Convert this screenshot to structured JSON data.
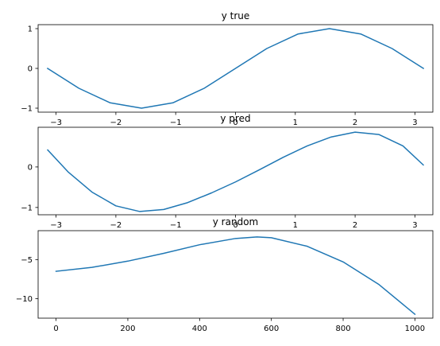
{
  "chart_data": [
    {
      "type": "line",
      "title": "y true",
      "xlabel": "",
      "ylabel": "",
      "xlim": [
        -3.3,
        3.3
      ],
      "ylim": [
        -1.1,
        1.1
      ],
      "xticks": [
        -3,
        -2,
        -1,
        0,
        1,
        2,
        3
      ],
      "xtick_labels": [
        "−3",
        "−2",
        "−1",
        "0",
        "1",
        "2",
        "3"
      ],
      "yticks": [
        -1,
        0,
        1
      ],
      "ytick_labels": [
        "−1",
        "0",
        "1"
      ],
      "grid": false,
      "series": [
        {
          "color": "#1f77b4",
          "x": [
            -3.1416,
            -2.618,
            -2.0944,
            -1.5708,
            -1.0472,
            -0.5236,
            0.0,
            0.5236,
            1.0472,
            1.5708,
            2.0944,
            2.618,
            3.1416
          ],
          "y": [
            0.0,
            -0.5,
            -0.866,
            -1.0,
            -0.866,
            -0.5,
            0.0,
            0.5,
            0.866,
            1.0,
            0.866,
            0.5,
            0.0
          ]
        }
      ]
    },
    {
      "type": "line",
      "title": "y pred",
      "xlabel": "",
      "ylabel": "",
      "xlim": [
        -3.3,
        3.3
      ],
      "ylim": [
        -1.18,
        0.98
      ],
      "xticks": [
        -3,
        -2,
        -1,
        0,
        1,
        2,
        3
      ],
      "xtick_labels": [
        "−3",
        "−2",
        "−1",
        "0",
        "1",
        "2",
        "3"
      ],
      "yticks": [
        -1,
        0
      ],
      "ytick_labels": [
        "−1",
        "0"
      ],
      "grid": false,
      "series": [
        {
          "color": "#1f77b4",
          "x": [
            -3.14,
            -2.8,
            -2.4,
            -2.0,
            -1.6,
            -1.2,
            -0.8,
            -0.4,
            0.0,
            0.4,
            0.8,
            1.2,
            1.6,
            2.0,
            2.4,
            2.8,
            3.14
          ],
          "y": [
            0.42,
            -0.12,
            -0.62,
            -0.96,
            -1.1,
            -1.05,
            -0.88,
            -0.64,
            -0.37,
            -0.07,
            0.24,
            0.52,
            0.74,
            0.86,
            0.8,
            0.52,
            0.05
          ]
        }
      ]
    },
    {
      "type": "line",
      "title": "y random",
      "xlabel": "",
      "ylabel": "",
      "xlim": [
        -50,
        1050
      ],
      "ylim": [
        -12.5,
        -1.3
      ],
      "xticks": [
        0,
        200,
        400,
        600,
        800,
        1000
      ],
      "xtick_labels": [
        "0",
        "200",
        "400",
        "600",
        "800",
        "1000"
      ],
      "yticks": [
        -10,
        -5
      ],
      "ytick_labels": [
        "−10",
        "−5"
      ],
      "grid": false,
      "series": [
        {
          "color": "#1f77b4",
          "x": [
            0,
            100,
            200,
            300,
            400,
            500,
            560,
            600,
            700,
            800,
            900,
            1000
          ],
          "y": [
            -6.5,
            -6.0,
            -5.2,
            -4.2,
            -3.1,
            -2.3,
            -2.1,
            -2.2,
            -3.3,
            -5.3,
            -8.2,
            -12.0
          ]
        }
      ]
    }
  ]
}
